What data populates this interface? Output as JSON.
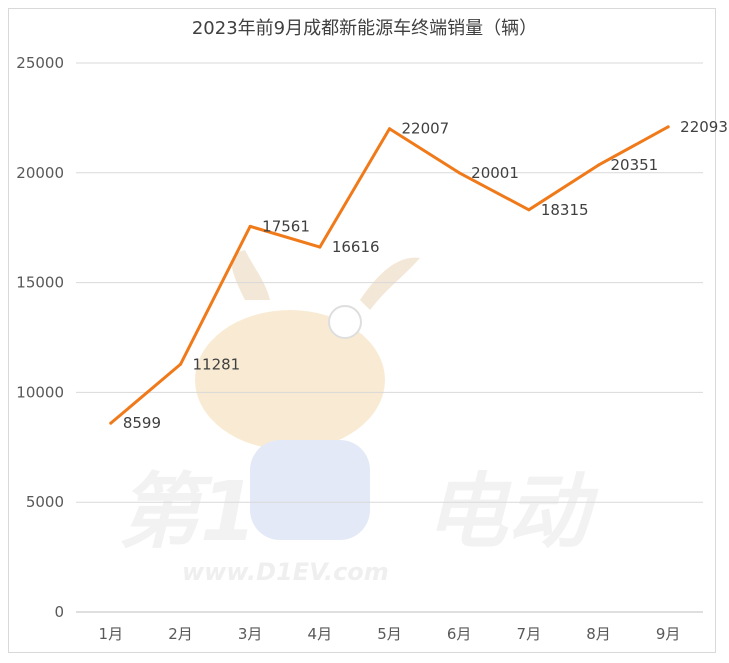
{
  "chart_data": {
    "type": "line",
    "title": "2023年前9月成都新能源车终端销量（辆）",
    "categories": [
      "1月",
      "2月",
      "3月",
      "4月",
      "5月",
      "6月",
      "7月",
      "8月",
      "9月"
    ],
    "series": [
      {
        "values": [
          8599,
          11281,
          17561,
          16616,
          22007,
          20001,
          18315,
          20351,
          22093
        ],
        "color": "#f07a1a"
      }
    ],
    "ylim": [
      0,
      25000
    ],
    "yticks": [
      "0",
      "5000",
      "10000",
      "15000",
      "20000",
      "25000"
    ],
    "data_labels": [
      "8599",
      "11281",
      "17561",
      "16616",
      "22007",
      "20001",
      "18315",
      "20351",
      "22093"
    ],
    "grid": true,
    "legend": "none"
  },
  "watermark": {
    "brand": "第1电动",
    "url": "www.D1EV.com"
  },
  "colors": {
    "line": "#f07a1a",
    "grid": "#d9d9d9",
    "watermark": "#e6e6e6"
  }
}
